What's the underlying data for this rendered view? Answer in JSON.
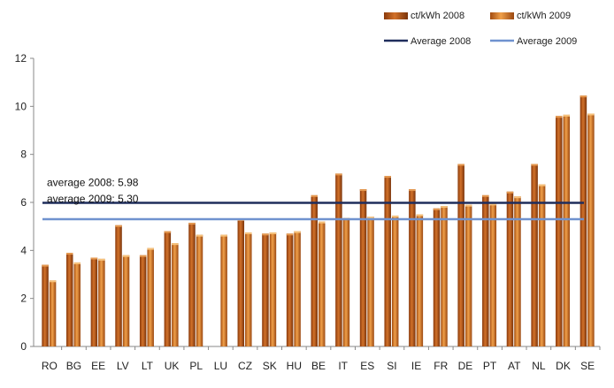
{
  "chart_data": {
    "type": "bar",
    "categories": [
      "RO",
      "BG",
      "EE",
      "LV",
      "LT",
      "UK",
      "PL",
      "LU",
      "CZ",
      "SK",
      "HU",
      "BE",
      "IT",
      "ES",
      "SI",
      "IE",
      "FR",
      "DE",
      "PT",
      "AT",
      "NL",
      "DK",
      "SE"
    ],
    "series": [
      {
        "name": "ct/kWh 2008",
        "color": "#c8651e",
        "values": [
          3.4,
          3.9,
          3.7,
          5.05,
          3.8,
          4.8,
          5.15,
          null,
          5.3,
          4.7,
          4.7,
          6.3,
          7.2,
          6.55,
          7.1,
          6.55,
          5.75,
          7.6,
          6.3,
          6.45,
          7.6,
          9.6,
          10.45
        ]
      },
      {
        "name": "ct/kWh 2009",
        "color": "#e08a2e",
        "values": [
          2.75,
          3.5,
          3.65,
          3.8,
          4.1,
          4.3,
          4.65,
          4.65,
          4.75,
          4.75,
          4.8,
          5.2,
          5.35,
          5.4,
          5.45,
          5.5,
          5.85,
          5.9,
          5.95,
          6.25,
          6.75,
          9.65,
          9.7
        ]
      }
    ],
    "reference_lines": [
      {
        "name": "Average 2008",
        "value": 5.98,
        "color": "#1f2d5c",
        "annotation": "average 2008:  5.98"
      },
      {
        "name": "Average 2009",
        "value": 5.3,
        "color": "#6f92cf",
        "annotation": "average 2009:  5.30"
      }
    ],
    "y_ticks": [
      "0",
      "2",
      "4",
      "6",
      "8",
      "10",
      "12"
    ],
    "ylim": [
      0,
      12
    ],
    "xlabel": "",
    "ylabel": "",
    "grid": false,
    "legend_position": "top-right"
  }
}
